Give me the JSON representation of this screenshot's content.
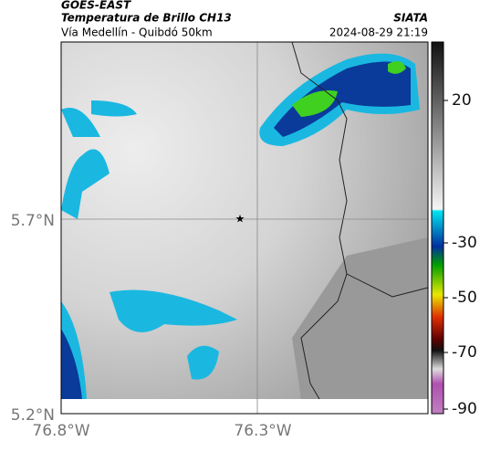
{
  "header": {
    "source": "GOES-EAST",
    "title": "Temperatura de Brillo CH13",
    "route": "Vía Medellín - Quibdó 50km",
    "brand": "SIATA",
    "timestamp": "2024-08-29 21:19"
  },
  "axes": {
    "lat_labels": [
      "5.7°N",
      "5.2°N"
    ],
    "lon_labels": [
      "76.8°W",
      "76.3°W"
    ]
  },
  "colorbar": {
    "ticks": [
      20,
      -30,
      -50,
      -70,
      -90
    ]
  }
}
